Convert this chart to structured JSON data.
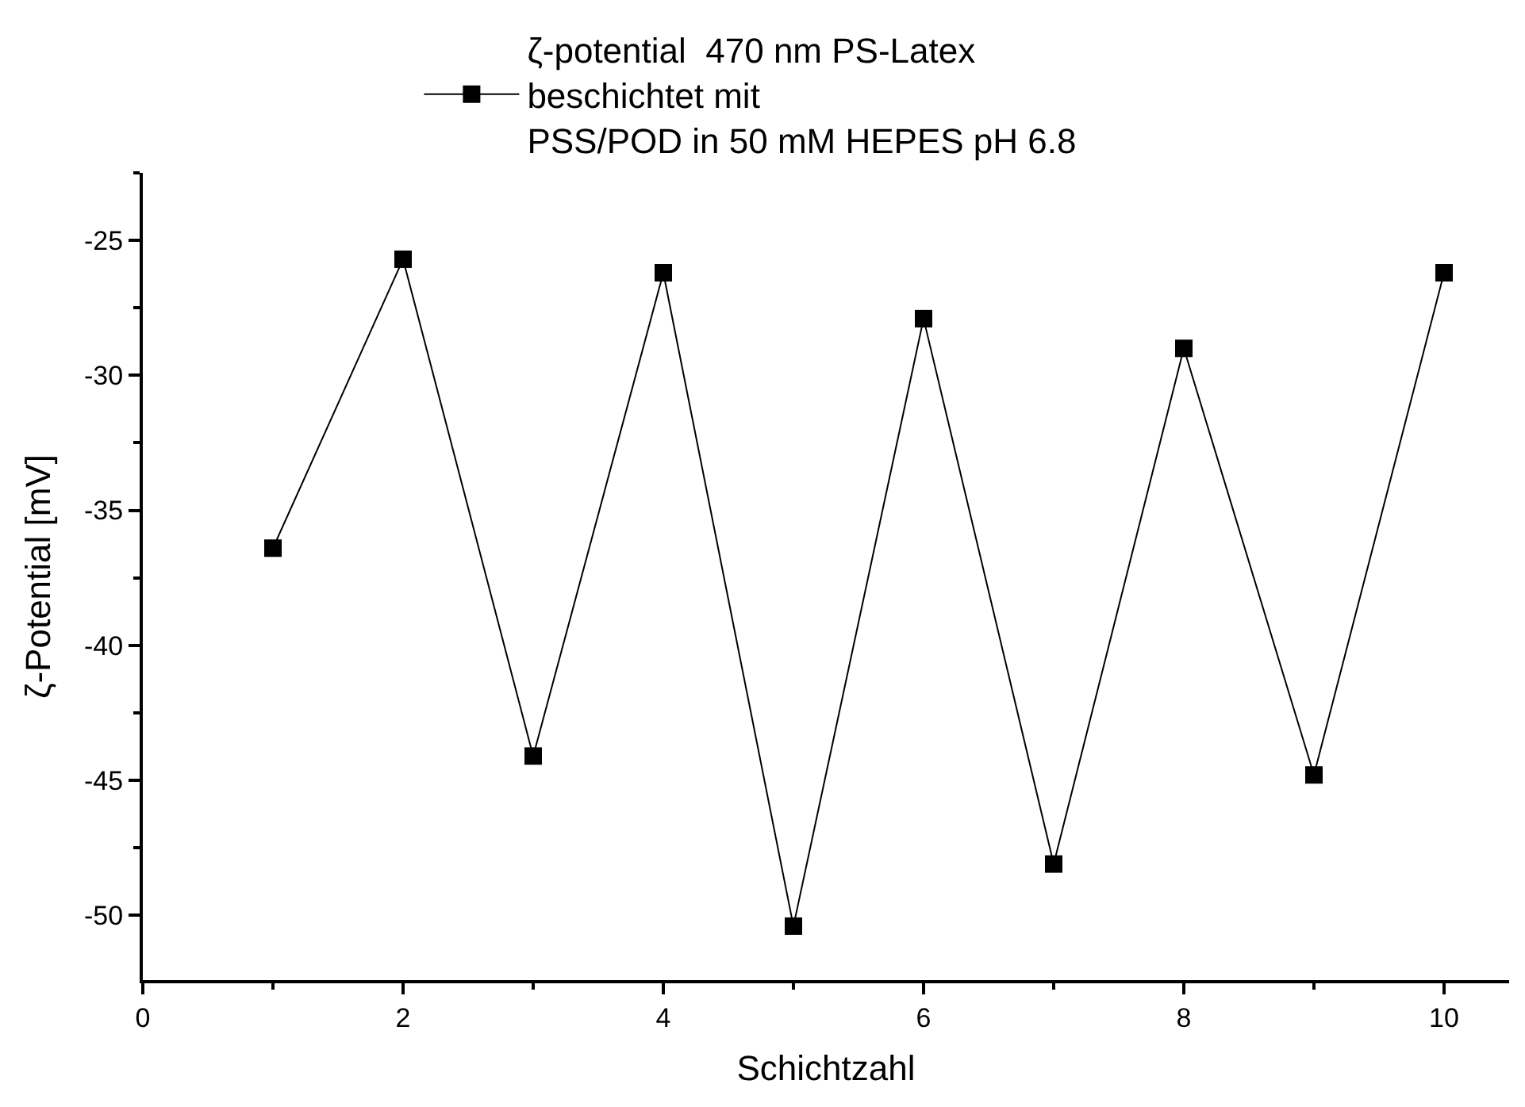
{
  "chart_data": {
    "type": "line",
    "xlabel": "Schichtzahl",
    "ylabel": "ζ-Potential [mV]",
    "x": [
      1,
      2,
      3,
      4,
      5,
      6,
      7,
      8,
      9,
      10
    ],
    "series": [
      {
        "name": "ζ-potential  470 nm PS-Latex\nbeschichtet mit\nPSS/POD in 50 mM HEPES pH 6.8",
        "color": "#000000",
        "values": [
          -36.4,
          -25.7,
          -44.1,
          -26.2,
          -50.4,
          -27.9,
          -48.1,
          -29.0,
          -44.8,
          -26.2
        ]
      }
    ],
    "xlim": [
      0,
      10.5
    ],
    "xticks": [
      0,
      2,
      4,
      6,
      8,
      10
    ],
    "ylim": [
      -52.4,
      -22.5
    ],
    "yticks": [
      -50,
      -45,
      -40,
      -35,
      -30,
      -25
    ],
    "grid": false,
    "legend": "top",
    "marker": "square",
    "line_style": "solid"
  }
}
